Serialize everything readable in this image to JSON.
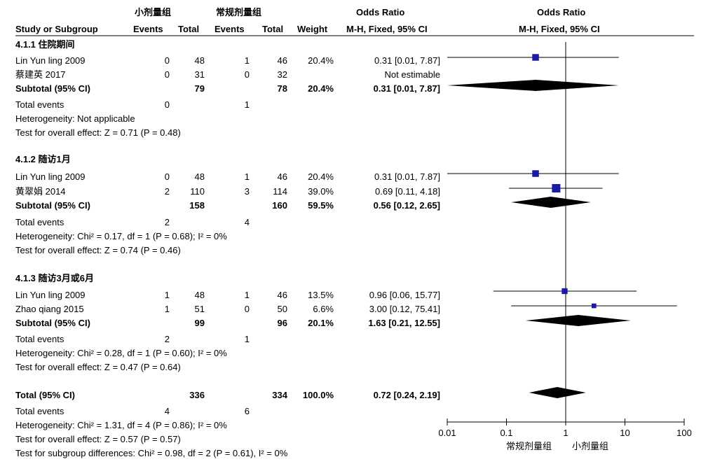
{
  "header": {
    "group_exp": "小剂量组",
    "group_ctrl": "常规剂量组",
    "or_title_left": "Odds Ratio",
    "or_title_right": "Odds Ratio",
    "col_study": "Study or Subgroup",
    "col_events_exp": "Events",
    "col_total_exp": "Total",
    "col_events_ctrl": "Events",
    "col_total_ctrl": "Total",
    "col_weight": "Weight",
    "col_method_left": "M-H, Fixed, 95% CI",
    "col_method_right": "M-H, Fixed, 95% CI"
  },
  "subgroups": [
    {
      "title": "4.1.1 住院期间",
      "studies": [
        {
          "name": "Lin Yun ling 2009",
          "e1": "0",
          "n1": "48",
          "e2": "1",
          "n2": "46",
          "weight": "20.4%",
          "ci": "0.31 [0.01, 7.87]"
        },
        {
          "name": "蔡建英 2017",
          "e1": "0",
          "n1": "31",
          "e2": "0",
          "n2": "32",
          "weight": "",
          "ci": "Not estimable"
        }
      ],
      "subtotal": {
        "label": "Subtotal (95% CI)",
        "n1": "79",
        "n2": "78",
        "weight": "20.4%",
        "ci": "0.31 [0.01, 7.87]"
      },
      "events": {
        "label": "Total events",
        "e1": "0",
        "e2": "1"
      },
      "heterogeneity": "Heterogeneity: Not applicable",
      "overall": "Test for overall effect: Z = 0.71 (P = 0.48)"
    },
    {
      "title": "4.1.2 随访1月",
      "studies": [
        {
          "name": "Lin Yun ling 2009",
          "e1": "0",
          "n1": "48",
          "e2": "1",
          "n2": "46",
          "weight": "20.4%",
          "ci": "0.31 [0.01, 7.87]"
        },
        {
          "name": "黄翠娟 2014",
          "e1": "2",
          "n1": "110",
          "e2": "3",
          "n2": "114",
          "weight": "39.0%",
          "ci": "0.69 [0.11, 4.18]"
        }
      ],
      "subtotal": {
        "label": "Subtotal (95% CI)",
        "n1": "158",
        "n2": "160",
        "weight": "59.5%",
        "ci": "0.56 [0.12, 2.65]"
      },
      "events": {
        "label": "Total events",
        "e1": "2",
        "e2": "4"
      },
      "heterogeneity": "Heterogeneity: Chi² = 0.17, df = 1 (P = 0.68); I² = 0%",
      "overall": "Test for overall effect: Z = 0.74 (P = 0.46)"
    },
    {
      "title": "4.1.3 随访3月或6月",
      "studies": [
        {
          "name": "Lin Yun ling 2009",
          "e1": "1",
          "n1": "48",
          "e2": "1",
          "n2": "46",
          "weight": "13.5%",
          "ci": "0.96 [0.06, 15.77]"
        },
        {
          "name": "Zhao qiang 2015",
          "e1": "1",
          "n1": "51",
          "e2": "0",
          "n2": "50",
          "weight": "6.6%",
          "ci": "3.00 [0.12, 75.41]"
        }
      ],
      "subtotal": {
        "label": "Subtotal (95% CI)",
        "n1": "99",
        "n2": "96",
        "weight": "20.1%",
        "ci": "1.63 [0.21, 12.55]"
      },
      "events": {
        "label": "Total events",
        "e1": "2",
        "e2": "1"
      },
      "heterogeneity": "Heterogeneity: Chi² = 0.28, df = 1 (P = 0.60); I² = 0%",
      "overall": "Test for overall effect: Z = 0.47 (P = 0.64)"
    }
  ],
  "total": {
    "label": "Total (95% CI)",
    "n1": "336",
    "n2": "334",
    "weight": "100.0%",
    "ci": "0.72 [0.24, 2.19]",
    "events_label": "Total events",
    "e1": "4",
    "e2": "6",
    "heterogeneity": "Heterogeneity: Chi² = 1.31, df = 4 (P = 0.86); I² = 0%",
    "overall": "Test for overall effect: Z = 0.57 (P = 0.57)",
    "subgroup_diff": "Test for subgroup differences: Chi² = 0.98, df = 2 (P = 0.61), I² = 0%"
  },
  "axis_labels": {
    "favours_left": "常规剂量组",
    "favours_right": "小剂量组"
  },
  "colors": {
    "marker": "#1a1aa6",
    "diamond": "#000000",
    "line": "#000000"
  },
  "chart_data": {
    "type": "forest",
    "scale": "log",
    "xlim": [
      0.01,
      100
    ],
    "ticks": [
      0.01,
      0.1,
      1,
      10,
      100
    ],
    "tick_labels": [
      "0.01",
      "0.1",
      "1",
      "10",
      "100"
    ],
    "reference_line": 1,
    "studies": [
      {
        "name": "Lin Yun ling 2009",
        "subgroup": "4.1.1 住院期间",
        "or": 0.31,
        "lo": 0.01,
        "hi": 7.87,
        "weight": 20.4
      },
      {
        "name": "Lin Yun ling 2009",
        "subgroup": "4.1.2 随访1月",
        "or": 0.31,
        "lo": 0.01,
        "hi": 7.87,
        "weight": 20.4
      },
      {
        "name": "黄翠娟 2014",
        "subgroup": "4.1.2 随访1月",
        "or": 0.69,
        "lo": 0.11,
        "hi": 4.18,
        "weight": 39.0
      },
      {
        "name": "Lin Yun ling 2009",
        "subgroup": "4.1.3 随访3月或6月",
        "or": 0.96,
        "lo": 0.06,
        "hi": 15.77,
        "weight": 13.5
      },
      {
        "name": "Zhao qiang 2015",
        "subgroup": "4.1.3 随访3月或6月",
        "or": 3.0,
        "lo": 0.12,
        "hi": 75.41,
        "weight": 6.6
      }
    ],
    "diamonds": [
      {
        "name": "Subtotal 4.1.1",
        "or": 0.31,
        "lo": 0.01,
        "hi": 7.87
      },
      {
        "name": "Subtotal 4.1.2",
        "or": 0.56,
        "lo": 0.12,
        "hi": 2.65
      },
      {
        "name": "Subtotal 4.1.3",
        "or": 1.63,
        "lo": 0.21,
        "hi": 12.55
      },
      {
        "name": "Total",
        "or": 0.72,
        "lo": 0.24,
        "hi": 2.19
      }
    ]
  }
}
